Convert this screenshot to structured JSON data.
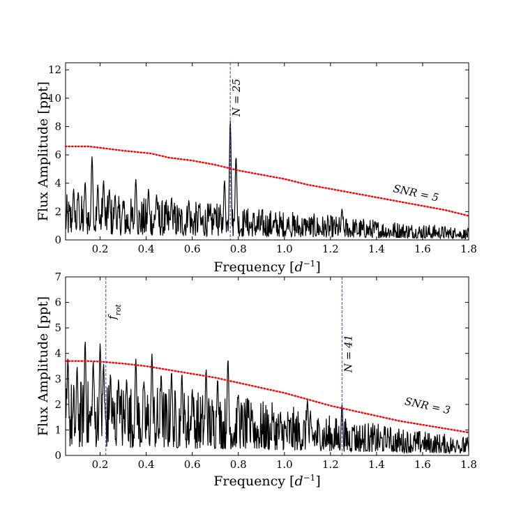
{
  "chart_data": [
    {
      "type": "line",
      "panel": "top",
      "title": "",
      "xlabel": "Frequency [d^-1]",
      "ylabel": "Flux Amplitude [ppt]",
      "xlim": [
        0.05,
        1.8
      ],
      "ylim": [
        0,
        12.5
      ],
      "xticks": [
        "0.2",
        "0.4",
        "0.6",
        "0.8",
        "1.0",
        "1.2",
        "1.4",
        "1.6",
        "1.8"
      ],
      "yticks": [
        "0",
        "2",
        "4",
        "6",
        "8",
        "10",
        "12"
      ],
      "grid": false,
      "series": [
        {
          "name": "amplitude spectrum",
          "color": "#000000",
          "peaks": [
            {
              "x": 0.085,
              "y": 3.6
            },
            {
              "x": 0.105,
              "y": 3.4
            },
            {
              "x": 0.135,
              "y": 4.1
            },
            {
              "x": 0.165,
              "y": 5.9
            },
            {
              "x": 0.19,
              "y": 3.9
            },
            {
              "x": 0.215,
              "y": 4.2
            },
            {
              "x": 0.24,
              "y": 3.6
            },
            {
              "x": 0.265,
              "y": 3.2
            },
            {
              "x": 0.3,
              "y": 2.8
            },
            {
              "x": 0.355,
              "y": 4.3
            },
            {
              "x": 0.41,
              "y": 3.6
            },
            {
              "x": 0.445,
              "y": 3.2
            },
            {
              "x": 0.51,
              "y": 3.0
            },
            {
              "x": 0.585,
              "y": 2.8
            },
            {
              "x": 0.63,
              "y": 2.4
            },
            {
              "x": 0.7,
              "y": 2.2
            },
            {
              "x": 0.74,
              "y": 4.2
            },
            {
              "x": 0.765,
              "y": 8.5
            },
            {
              "x": 0.79,
              "y": 5.9
            },
            {
              "x": 0.83,
              "y": 1.3
            },
            {
              "x": 0.95,
              "y": 1.0
            },
            {
              "x": 1.02,
              "y": 1.1
            },
            {
              "x": 1.1,
              "y": 1.0
            },
            {
              "x": 1.25,
              "y": 2.2
            },
            {
              "x": 1.31,
              "y": 0.8
            },
            {
              "x": 1.4,
              "y": 0.7
            },
            {
              "x": 1.55,
              "y": 0.5
            },
            {
              "x": 1.66,
              "y": 0.4
            },
            {
              "x": 1.75,
              "y": 0.4
            }
          ]
        },
        {
          "name": "SNR=5",
          "color": "#ff0000",
          "x": [
            0.05,
            0.15,
            0.2,
            0.3,
            0.42,
            0.5,
            0.6,
            0.7,
            0.8,
            0.9,
            1.0,
            1.1,
            1.2,
            1.3,
            1.4,
            1.5,
            1.6,
            1.7,
            1.8
          ],
          "y": [
            6.6,
            6.6,
            6.5,
            6.3,
            6.1,
            5.8,
            5.6,
            5.3,
            4.9,
            4.6,
            4.3,
            3.9,
            3.6,
            3.3,
            3.0,
            2.7,
            2.4,
            2.1,
            1.7
          ]
        }
      ],
      "vlines": [
        {
          "x": 0.765,
          "label": "N = 25"
        }
      ],
      "annotations": [
        {
          "text": "SNR = 5",
          "x": 1.47,
          "y": 3.4
        }
      ]
    },
    {
      "type": "line",
      "panel": "bottom",
      "title": "",
      "xlabel": "Frequency [d^-1]",
      "ylabel": "Flux Amplitude [ppt]",
      "xlim": [
        0.05,
        1.8
      ],
      "ylim": [
        0,
        7
      ],
      "xticks": [
        "0.2",
        "0.4",
        "0.6",
        "0.8",
        "1.0",
        "1.2",
        "1.4",
        "1.6",
        "1.8"
      ],
      "yticks": [
        "0",
        "1",
        "2",
        "3",
        "4",
        "5",
        "6",
        "7"
      ],
      "grid": false,
      "series": [
        {
          "name": "amplitude spectrum",
          "color": "#000000",
          "peaks": [
            {
              "x": 0.06,
              "y": 3.8
            },
            {
              "x": 0.1,
              "y": 3.5
            },
            {
              "x": 0.135,
              "y": 4.5
            },
            {
              "x": 0.17,
              "y": 3.7
            },
            {
              "x": 0.2,
              "y": 4.4
            },
            {
              "x": 0.215,
              "y": 3.6
            },
            {
              "x": 0.245,
              "y": 3.2
            },
            {
              "x": 0.28,
              "y": 3.0
            },
            {
              "x": 0.315,
              "y": 3.0
            },
            {
              "x": 0.355,
              "y": 3.8
            },
            {
              "x": 0.39,
              "y": 2.9
            },
            {
              "x": 0.425,
              "y": 4.0
            },
            {
              "x": 0.465,
              "y": 3.2
            },
            {
              "x": 0.51,
              "y": 3.3
            },
            {
              "x": 0.555,
              "y": 3.2
            },
            {
              "x": 0.6,
              "y": 2.6
            },
            {
              "x": 0.66,
              "y": 3.4
            },
            {
              "x": 0.71,
              "y": 3.0
            },
            {
              "x": 0.755,
              "y": 3.8
            },
            {
              "x": 0.8,
              "y": 2.4
            },
            {
              "x": 0.86,
              "y": 1.8
            },
            {
              "x": 0.95,
              "y": 1.5
            },
            {
              "x": 1.1,
              "y": 2.2
            },
            {
              "x": 1.15,
              "y": 1.1
            },
            {
              "x": 1.25,
              "y": 2.0
            },
            {
              "x": 1.3,
              "y": 1.1
            },
            {
              "x": 1.45,
              "y": 0.8
            },
            {
              "x": 1.6,
              "y": 0.6
            },
            {
              "x": 1.75,
              "y": 0.6
            }
          ]
        },
        {
          "name": "SNR=3",
          "color": "#ff0000",
          "x": [
            0.05,
            0.15,
            0.2,
            0.3,
            0.4,
            0.5,
            0.6,
            0.7,
            0.8,
            0.9,
            1.0,
            1.1,
            1.2,
            1.3,
            1.4,
            1.5,
            1.6,
            1.7,
            1.8
          ],
          "y": [
            3.7,
            3.7,
            3.68,
            3.6,
            3.5,
            3.35,
            3.2,
            3.05,
            2.85,
            2.65,
            2.45,
            2.2,
            1.95,
            1.75,
            1.55,
            1.35,
            1.2,
            1.05,
            0.9
          ]
        }
      ],
      "vlines": [
        {
          "x": 0.225,
          "label": "f_rot"
        },
        {
          "x": 1.25,
          "label": "N = 41"
        }
      ],
      "annotations": [
        {
          "text": "SNR = 3",
          "x": 1.52,
          "y": 2.0
        }
      ]
    }
  ]
}
